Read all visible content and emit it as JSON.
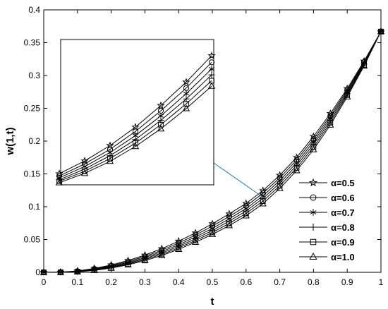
{
  "chart_data": {
    "type": "line",
    "title": "",
    "xlabel": "t",
    "ylabel": "w(1,t)",
    "xlim": [
      0,
      1
    ],
    "ylim": [
      0,
      0.4
    ],
    "xticks": [
      "0",
      "0.1",
      "0.2",
      "0.3",
      "0.4",
      "0.5",
      "0.6",
      "0.7",
      "0.8",
      "0.9",
      "1"
    ],
    "yticks": [
      "0",
      "0.05",
      "0.1",
      "0.15",
      "0.2",
      "0.25",
      "0.3",
      "0.35",
      "0.4"
    ],
    "grid": false,
    "legend_position": "bottom-right",
    "x": [
      0,
      0.05,
      0.1,
      0.15,
      0.2,
      0.25,
      0.3,
      0.35,
      0.4,
      0.45,
      0.5,
      0.55,
      0.6,
      0.65,
      0.7,
      0.75,
      0.8,
      0.85,
      0.9,
      0.95,
      1
    ],
    "series": [
      {
        "name": "α=0.5",
        "marker": "star",
        "values": [
          0,
          0.0003,
          0.0021,
          0.0059,
          0.0112,
          0.018,
          0.0262,
          0.036,
          0.0475,
          0.06,
          0.074,
          0.089,
          0.105,
          0.1245,
          0.148,
          0.175,
          0.207,
          0.242,
          0.28,
          0.322,
          0.367
        ]
      },
      {
        "name": "α=0.6",
        "marker": "circle",
        "values": [
          0,
          0.0002,
          0.0017,
          0.0052,
          0.01,
          0.0164,
          0.0242,
          0.0337,
          0.0447,
          0.0568,
          0.0705,
          0.0852,
          0.101,
          0.1205,
          0.144,
          0.171,
          0.203,
          0.2385,
          0.2775,
          0.3205,
          0.367
        ]
      },
      {
        "name": "α=0.7",
        "marker": "asterisk",
        "values": [
          0,
          0.0002,
          0.0014,
          0.0045,
          0.009,
          0.015,
          0.0225,
          0.0315,
          0.042,
          0.0538,
          0.067,
          0.0815,
          0.0972,
          0.1165,
          0.14,
          0.167,
          0.199,
          0.235,
          0.275,
          0.319,
          0.367
        ]
      },
      {
        "name": "α=0.8",
        "marker": "plus",
        "values": [
          0,
          0.0001,
          0.0011,
          0.0039,
          0.008,
          0.0137,
          0.0208,
          0.0294,
          0.0396,
          0.051,
          0.0638,
          0.078,
          0.0935,
          0.1125,
          0.136,
          0.163,
          0.195,
          0.2315,
          0.2725,
          0.3175,
          0.367
        ]
      },
      {
        "name": "α=0.9",
        "marker": "square",
        "values": [
          0,
          0.0001,
          0.0009,
          0.0034,
          0.0072,
          0.0125,
          0.0193,
          0.0275,
          0.0373,
          0.0484,
          0.0607,
          0.0745,
          0.0898,
          0.1085,
          0.132,
          0.159,
          0.191,
          0.228,
          0.27,
          0.316,
          0.367
        ]
      },
      {
        "name": "α=1.0",
        "marker": "triangle",
        "values": [
          0,
          0.0001,
          0.0007,
          0.0029,
          0.0064,
          0.0114,
          0.0178,
          0.0257,
          0.0351,
          0.0459,
          0.0578,
          0.0712,
          0.0862,
          0.1045,
          0.128,
          0.155,
          0.187,
          0.2245,
          0.2675,
          0.3145,
          0.367
        ]
      }
    ],
    "inset": {
      "x_range": [
        0.2,
        0.5
      ],
      "note_points": [
        0.2,
        0.25,
        0.3,
        0.35,
        0.4,
        0.45,
        0.5
      ]
    }
  }
}
